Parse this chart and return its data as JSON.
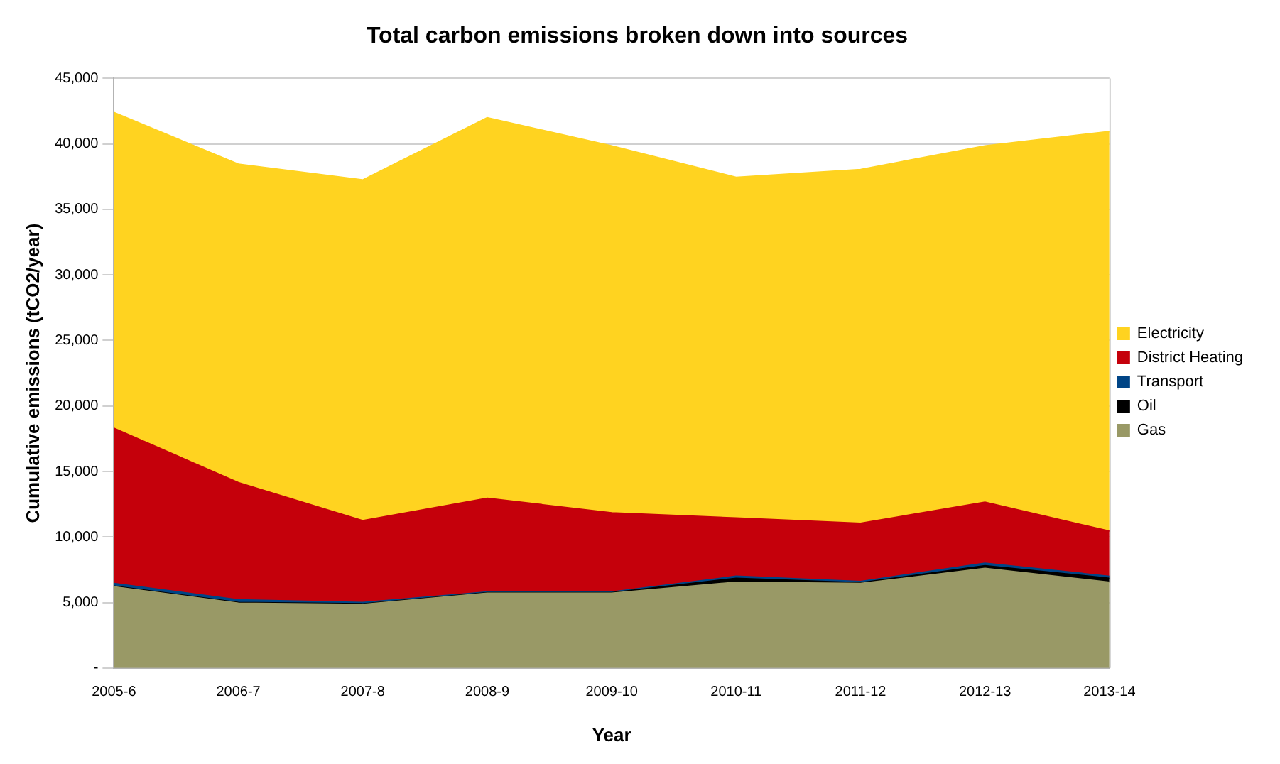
{
  "chart_data": {
    "type": "area",
    "title": "Total carbon emissions broken down into sources",
    "xlabel": "Year",
    "ylabel": "Cumulative emissions (tCO2/year)",
    "categories": [
      "2005-6",
      "2006-7",
      "2007-8",
      "2008-9",
      "2009-10",
      "2010-11",
      "2011-12",
      "2012-13",
      "2013-14"
    ],
    "stacked": true,
    "series": [
      {
        "name": "Gas",
        "color": "#999966",
        "values": [
          6200,
          4950,
          4850,
          5700,
          5700,
          6550,
          6450,
          7600,
          6550
        ]
      },
      {
        "name": "Oil",
        "color": "#000000",
        "values": [
          50,
          50,
          50,
          50,
          50,
          300,
          50,
          200,
          300
        ]
      },
      {
        "name": "Transport",
        "color": "#004586",
        "values": [
          200,
          200,
          100,
          50,
          50,
          150,
          100,
          200,
          150
        ]
      },
      {
        "name": "District Heating",
        "color": "#c5000b",
        "values": [
          11850,
          8950,
          6250,
          7150,
          6050,
          4450,
          4450,
          4650,
          3450
        ]
      },
      {
        "name": "Electricity",
        "color": "#ffd320",
        "values": [
          24100,
          24300,
          26000,
          29050,
          28000,
          26000,
          27000,
          27200,
          30500
        ]
      }
    ],
    "ylim": [
      0,
      45000
    ],
    "yticks": [
      {
        "value": 0,
        "label": "-"
      },
      {
        "value": 5000,
        "label": "5,000"
      },
      {
        "value": 10000,
        "label": "10,000"
      },
      {
        "value": 15000,
        "label": "15,000"
      },
      {
        "value": 20000,
        "label": "20,000"
      },
      {
        "value": 25000,
        "label": "25,000"
      },
      {
        "value": 30000,
        "label": "30,000"
      },
      {
        "value": 35000,
        "label": "35,000"
      },
      {
        "value": 40000,
        "label": "40,000"
      },
      {
        "value": 45000,
        "label": "45,000"
      }
    ],
    "grid": "y",
    "legend": "right"
  }
}
